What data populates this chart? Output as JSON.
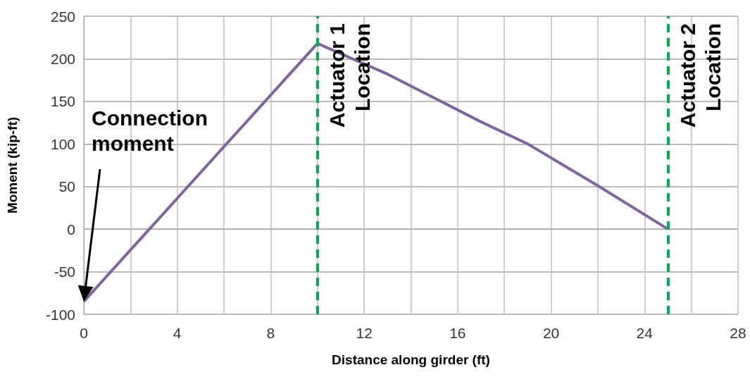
{
  "chart_data": {
    "type": "line",
    "xlabel": "Distance along girder (ft)",
    "ylabel": "Moment (kip-ft)",
    "x": [
      0,
      10,
      13,
      15,
      17,
      19,
      22,
      25
    ],
    "series": [
      {
        "color": "#8064a2",
        "values": [
          -85,
          218,
          182,
          154,
          126,
          100,
          51,
          0
        ]
      }
    ],
    "xlim": [
      0,
      28
    ],
    "xticks": [
      0,
      {
        "value": 2,
        "label": null
      },
      4,
      {
        "value": 6,
        "label": null
      },
      8,
      {
        "value": 10,
        "label": null
      },
      12,
      {
        "value": 14,
        "label": null
      },
      16,
      {
        "value": 18,
        "label": null
      },
      20,
      {
        "value": 22,
        "label": null
      },
      24,
      {
        "value": 26,
        "label": null
      },
      28
    ],
    "ylim": [
      -100,
      250
    ],
    "yticks": [
      -100,
      -50,
      0,
      50,
      100,
      150,
      200,
      250
    ],
    "grid": true,
    "marker": "none",
    "line_style": "solid",
    "ref_lines": [
      {
        "axis": "x",
        "value": 10,
        "label": "Actuator 1\nLocation",
        "color": "#00b050",
        "line_style": "dashed"
      },
      {
        "axis": "x",
        "value": 25,
        "label": "Actuator 2\nLocation",
        "color": "#00b050",
        "line_style": "dashed"
      }
    ],
    "annotations": [
      "Connection\nmoment"
    ]
  }
}
